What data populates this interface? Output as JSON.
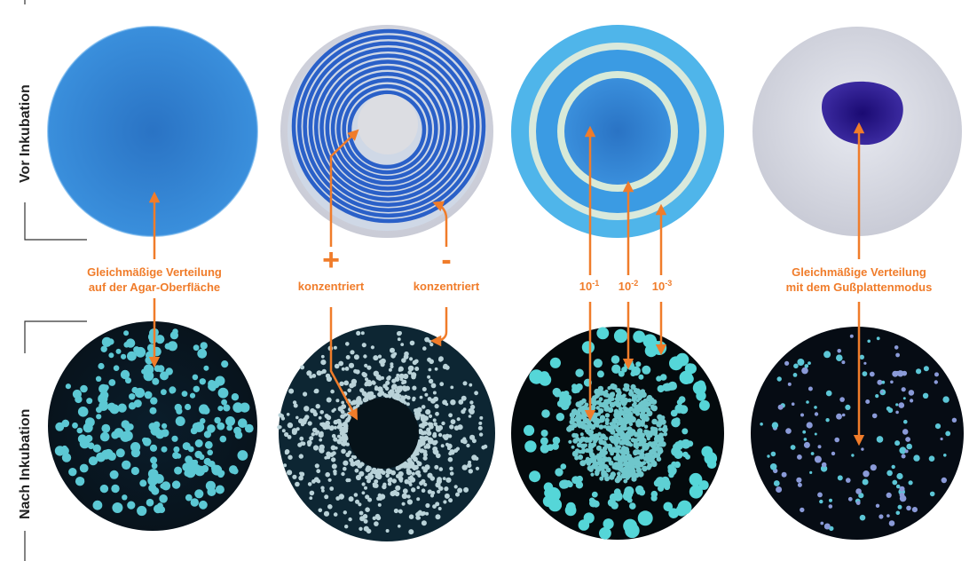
{
  "row_labels": {
    "top": "Vor Inkubation",
    "bottom": "Nach Inkubation"
  },
  "labels": {
    "uniform_spread": [
      "Gleichmäßige Verteilung",
      "auf der Agar-Oberfläche"
    ],
    "plus_sign": "+",
    "plus_text": "konzentriert",
    "minus_sign": "-",
    "minus_text": "konzentriert",
    "dilutions": [
      {
        "base": "10",
        "exp": "-1"
      },
      {
        "base": "10",
        "exp": "-2"
      },
      {
        "base": "10",
        "exp": "-3"
      }
    ],
    "pour_plate": [
      "Gleichmäßige Verteilung",
      "mit dem Gußplattenmodus"
    ]
  },
  "colors": {
    "accent": "#f07c2a",
    "blue_agar": "#2f86d6",
    "dark_plate": "#0b1f2c",
    "colony": "#5fd0d6"
  }
}
